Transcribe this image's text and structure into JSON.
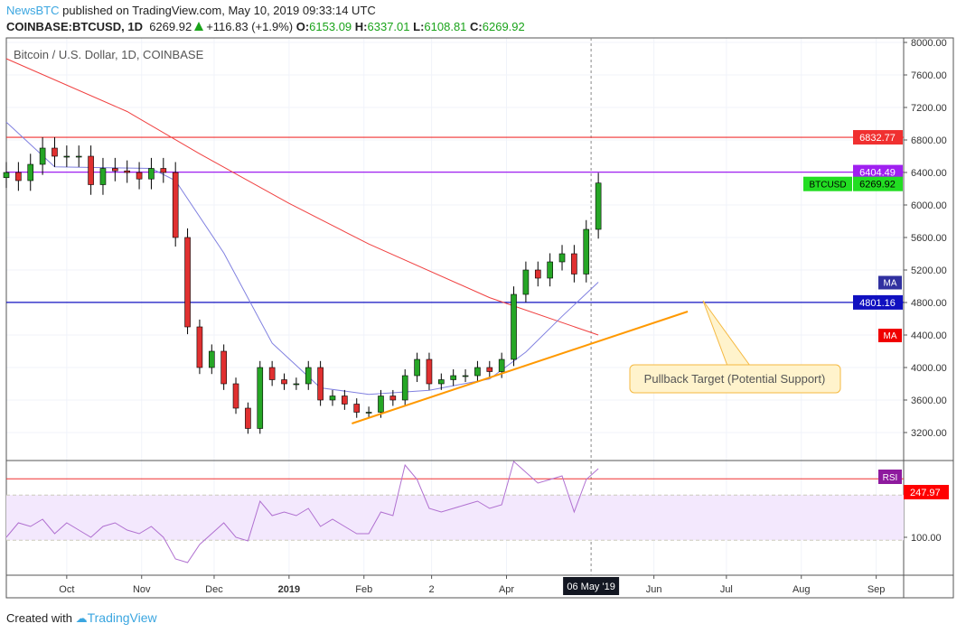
{
  "header": {
    "publisher": "NewsBTC",
    "published": " published on TradingView.com, May 10, 2019 09:33:14 UTC",
    "symbol": "COINBASE:BTCUSD, 1D",
    "last": "6269.92",
    "change": "+116.83 (+1.9%)",
    "o_label": "O:",
    "o": "6153.09",
    "h_label": "H:",
    "h": "6337.01",
    "l_label": "L:",
    "l": "6108.81",
    "c_label": "C:",
    "c": "6269.92"
  },
  "footer": {
    "created": "Created with",
    "brand": "TradingView"
  },
  "colors": {
    "up": "#26a626",
    "down": "#e03030",
    "ma50": "#8080e0",
    "ma200": "#f04040",
    "trend": "#ff9900"
  },
  "chart_data": {
    "type": "candlestick",
    "title": "Bitcoin / U.S. Dollar, 1D, COINBASE",
    "ylim": [
      3000,
      8100
    ],
    "yticks": [
      "8000.00",
      "7600.00",
      "7200.00",
      "6800.00",
      "6400.00",
      "6000.00",
      "5600.00",
      "5200.00",
      "4800.00",
      "4400.00",
      "4000.00",
      "3600.00",
      "3200.00"
    ],
    "ytick_values": [
      8000,
      7600,
      7200,
      6800,
      6400,
      6000,
      5600,
      5200,
      4800,
      4400,
      4000,
      3600,
      3200
    ],
    "xticks": [
      {
        "label": "Oct",
        "day": 25
      },
      {
        "label": "Nov",
        "day": 56
      },
      {
        "label": "Dec",
        "day": 86
      },
      {
        "label": "2019",
        "day": 117
      },
      {
        "label": "Feb",
        "day": 148
      },
      {
        "label": "2",
        "day": 176
      },
      {
        "label": "Apr",
        "day": 207
      },
      {
        "label": "Jun",
        "day": 268
      },
      {
        "label": "Jul",
        "day": 298
      },
      {
        "label": "Aug",
        "day": 329
      },
      {
        "label": "Sep",
        "day": 360
      }
    ],
    "crosshair": {
      "label": "06 May '19",
      "day": 242
    },
    "day_step": 5,
    "closes": [
      6400,
      6300,
      6500,
      6700,
      6600,
      6600,
      6600,
      6250,
      6450,
      6420,
      6400,
      6320,
      6450,
      6400,
      5600,
      4500,
      4000,
      4200,
      3800,
      3500,
      3250,
      4000,
      3850,
      3800,
      3800,
      4000,
      3600,
      3650,
      3550,
      3450,
      3450,
      3650,
      3600,
      3900,
      4100,
      3800,
      3850,
      3900,
      3900,
      4000,
      3950,
      4100,
      4900,
      5200,
      5100,
      5300,
      5400,
      5150,
      5700,
      6270
    ],
    "ma200": [
      [
        0,
        7800
      ],
      [
        50,
        7150
      ],
      [
        80,
        6630
      ],
      [
        117,
        6020
      ],
      [
        150,
        5520
      ],
      [
        200,
        4860
      ],
      [
        245,
        4400
      ]
    ],
    "ma50": [
      [
        0,
        7020
      ],
      [
        20,
        6470
      ],
      [
        60,
        6450
      ],
      [
        70,
        6300
      ],
      [
        90,
        5410
      ],
      [
        110,
        4300
      ],
      [
        130,
        3750
      ],
      [
        150,
        3670
      ],
      [
        175,
        3720
      ],
      [
        200,
        3860
      ],
      [
        215,
        4190
      ],
      [
        230,
        4630
      ],
      [
        245,
        5050
      ]
    ],
    "hlines": [
      {
        "value": 6832.77,
        "label": "6832.77",
        "color": "#f03030"
      },
      {
        "value": 6404.49,
        "label": "6404.49",
        "color": "#a020f0"
      },
      {
        "value": 4801.16,
        "label": "4801.16",
        "color": "#1010c0"
      }
    ],
    "price_tag": {
      "name": "BTCUSD",
      "value": 6269.92,
      "label": "6269.92"
    },
    "ma_tags": [
      {
        "label": "MA",
        "value": 5050,
        "color": "#3030a0"
      },
      {
        "label": "MA",
        "value": 4400,
        "color": "#f00000"
      }
    ],
    "trendline": [
      [
        143,
        3311
      ],
      [
        282,
        4689
      ]
    ],
    "annotation": "Pullback Target (Potential Support)",
    "rsi": {
      "label": "RSI",
      "value_label": "247.97",
      "level": 262,
      "band": [
        92,
        217
      ],
      "ytick": "100.00",
      "ytick_value": 100,
      "values": [
        100,
        140,
        130,
        150,
        110,
        140,
        120,
        100,
        130,
        140,
        120,
        110,
        130,
        100,
        40,
        30,
        80,
        110,
        140,
        100,
        90,
        200,
        160,
        170,
        160,
        180,
        130,
        150,
        130,
        110,
        110,
        170,
        160,
        300,
        260,
        180,
        170,
        180,
        190,
        200,
        180,
        190,
        310,
        280,
        250,
        260,
        270,
        170,
        260,
        290
      ]
    }
  }
}
